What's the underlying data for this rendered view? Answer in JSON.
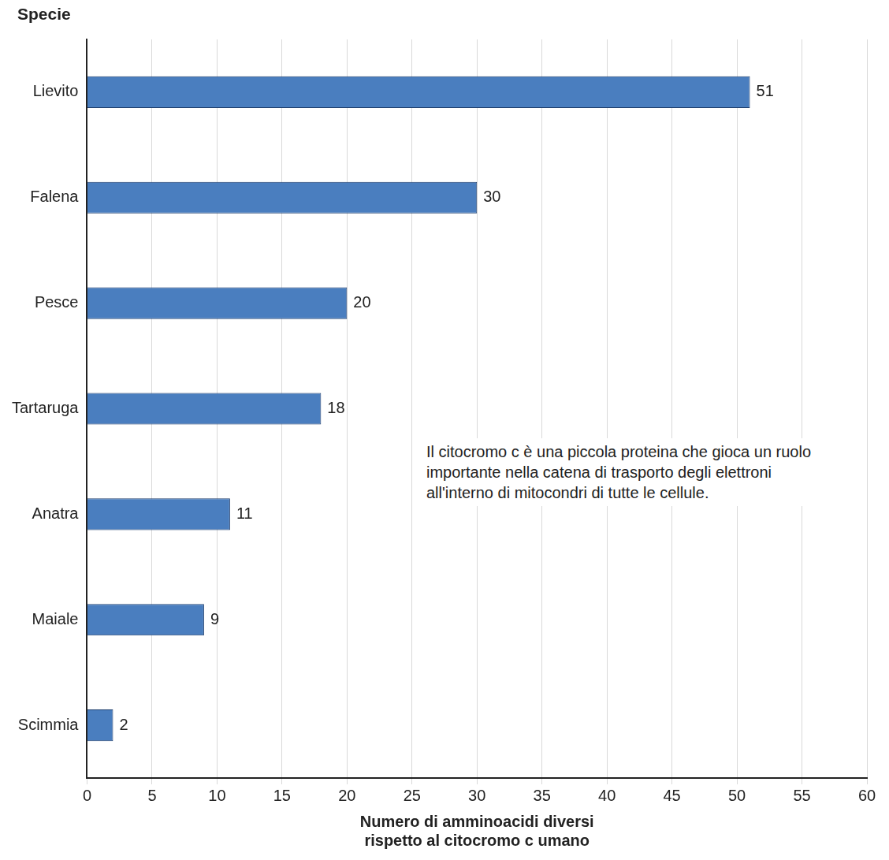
{
  "chart_data": {
    "type": "bar",
    "orientation": "horizontal",
    "ylabel": "Specie",
    "xlabel": [
      "Numero di amminoacidi diversi",
      "rispetto al citocromo c umano"
    ],
    "annotation": "Il citocromo c è una piccola proteina che gioca un ruolo importante nella catena di trasporto degli elettroni all'interno di mitocondri di tutte le cellule.",
    "categories": [
      "Lievito",
      "Falena",
      "Pesce",
      "Tartaruga",
      "Anatra",
      "Maiale",
      "Scimmia"
    ],
    "values": [
      51,
      30,
      20,
      18,
      11,
      9,
      2
    ],
    "color": "#4a7ebf",
    "xlim": [
      0,
      60
    ],
    "xticks": [
      0,
      5,
      10,
      15,
      20,
      25,
      30,
      35,
      40,
      45,
      50,
      55,
      60
    ],
    "grid": true,
    "data_labels": true
  }
}
